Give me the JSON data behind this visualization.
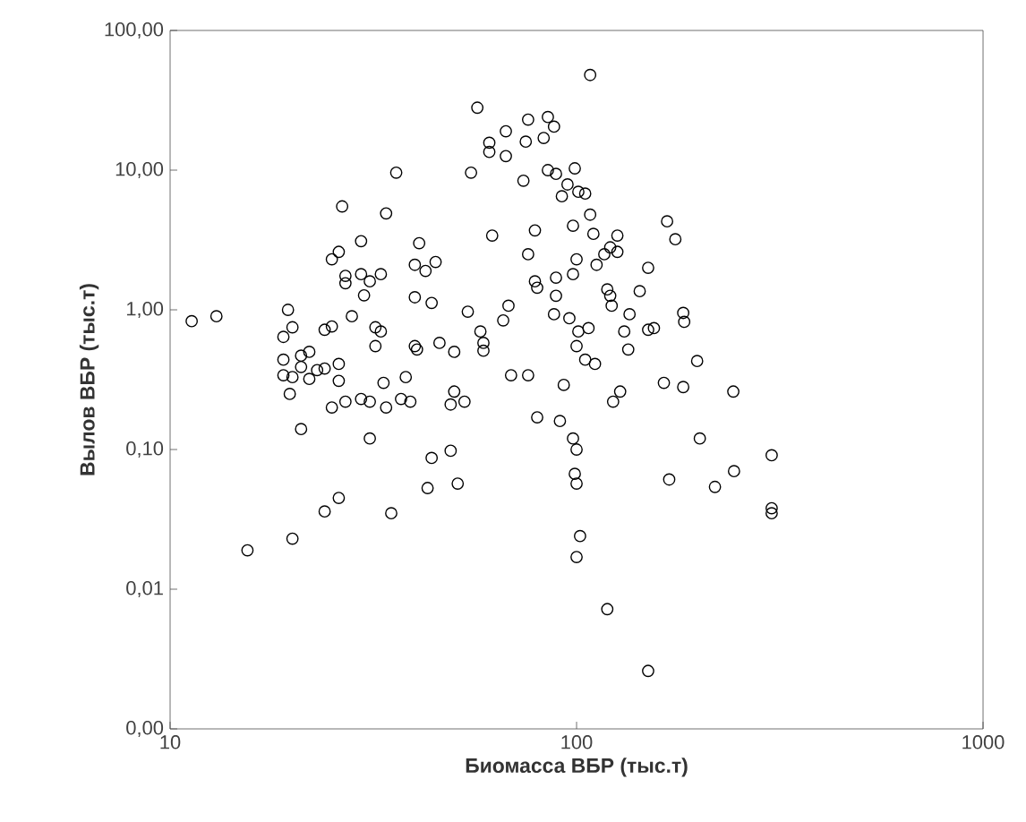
{
  "chart_data": {
    "type": "scatter",
    "xlabel": "Биомасса ВБР (тыс.т)",
    "ylabel": "Вылов ВБР (тыс.т)",
    "log": "xy",
    "xlim": [
      10,
      1000
    ],
    "ylim": [
      0.001,
      100
    ],
    "xticks": [
      10,
      100,
      1000
    ],
    "yticks": [
      {
        "value": 0.001,
        "label": "0,00"
      },
      {
        "value": 0.01,
        "label": "0,01"
      },
      {
        "value": 0.1,
        "label": "0,10"
      },
      {
        "value": 1,
        "label": "1,00"
      },
      {
        "value": 10,
        "label": "10,00"
      },
      {
        "value": 100,
        "label": "100,00"
      }
    ],
    "marker": "circle",
    "color": "#000000",
    "x": [
      57,
      67,
      76,
      85,
      88,
      83,
      75,
      61,
      61,
      67,
      36,
      55,
      74,
      85,
      89,
      99,
      95,
      92,
      101,
      108,
      105,
      108,
      110,
      126,
      167,
      175,
      121,
      117,
      126,
      112,
      150,
      119,
      121,
      122,
      143,
      135,
      107,
      131,
      150,
      155,
      183,
      184,
      134,
      111,
      198,
      128,
      164,
      183,
      243,
      26.5,
      34,
      62,
      79,
      98,
      29.5,
      41,
      26,
      25,
      76,
      100,
      40,
      45,
      42.5,
      27,
      29.5,
      33,
      31,
      27,
      30,
      79,
      89,
      98,
      80,
      89,
      40,
      44,
      11.3,
      13,
      19.5,
      20,
      19,
      24,
      25,
      28,
      32,
      33,
      32,
      40,
      40.5,
      46,
      50,
      54,
      68,
      66,
      58,
      59,
      59,
      88,
      96,
      101,
      100,
      105,
      19,
      21,
      22,
      21,
      19,
      20,
      22,
      23,
      24,
      26,
      26,
      33.5,
      38,
      69,
      76,
      93,
      50,
      19.7,
      21,
      25,
      27,
      29.5,
      31,
      34,
      37,
      39,
      31,
      49,
      53,
      44,
      49,
      43,
      51,
      26,
      24,
      35,
      20,
      15.5,
      80,
      91,
      98,
      100,
      99,
      100,
      102,
      100,
      123,
      201,
      302,
      244,
      169,
      219,
      302,
      302,
      119,
      150
    ],
    "values": [
      28,
      19,
      23,
      24,
      20.5,
      17,
      16,
      15.7,
      13.5,
      12.6,
      9.6,
      9.6,
      8.4,
      10,
      9.4,
      10.3,
      7.9,
      6.5,
      7,
      48,
      6.8,
      4.8,
      3.5,
      3.4,
      4.3,
      3.2,
      2.8,
      2.5,
      2.6,
      2.1,
      2,
      1.4,
      1.26,
      1.07,
      1.36,
      0.93,
      0.74,
      0.7,
      0.72,
      0.74,
      0.95,
      0.82,
      0.52,
      0.41,
      0.43,
      0.26,
      0.3,
      0.28,
      0.26,
      5.5,
      4.9,
      3.4,
      3.7,
      4,
      3.1,
      3,
      2.6,
      2.3,
      2.5,
      2.3,
      2.1,
      2.2,
      1.9,
      1.75,
      1.8,
      1.8,
      1.6,
      1.55,
      1.27,
      1.6,
      1.7,
      1.8,
      1.44,
      1.26,
      1.23,
      1.12,
      0.83,
      0.9,
      1,
      0.75,
      0.64,
      0.72,
      0.76,
      0.9,
      0.75,
      0.7,
      0.55,
      0.55,
      0.52,
      0.58,
      0.5,
      0.97,
      1.07,
      0.84,
      0.7,
      0.58,
      0.51,
      0.93,
      0.87,
      0.7,
      0.55,
      0.44,
      0.44,
      0.47,
      0.5,
      0.39,
      0.34,
      0.33,
      0.32,
      0.37,
      0.38,
      0.41,
      0.31,
      0.3,
      0.33,
      0.34,
      0.34,
      0.29,
      0.26,
      0.25,
      0.14,
      0.2,
      0.22,
      0.23,
      0.22,
      0.2,
      0.23,
      0.22,
      0.12,
      0.21,
      0.22,
      0.087,
      0.098,
      0.053,
      0.057,
      0.045,
      0.036,
      0.035,
      0.023,
      0.019,
      0.17,
      0.16,
      0.12,
      0.1,
      0.067,
      0.057,
      0.024,
      0.017,
      0.22,
      0.12,
      0.091,
      0.07,
      0.061,
      0.054,
      0.038,
      0.035,
      0.0072,
      0.0026
    ]
  }
}
